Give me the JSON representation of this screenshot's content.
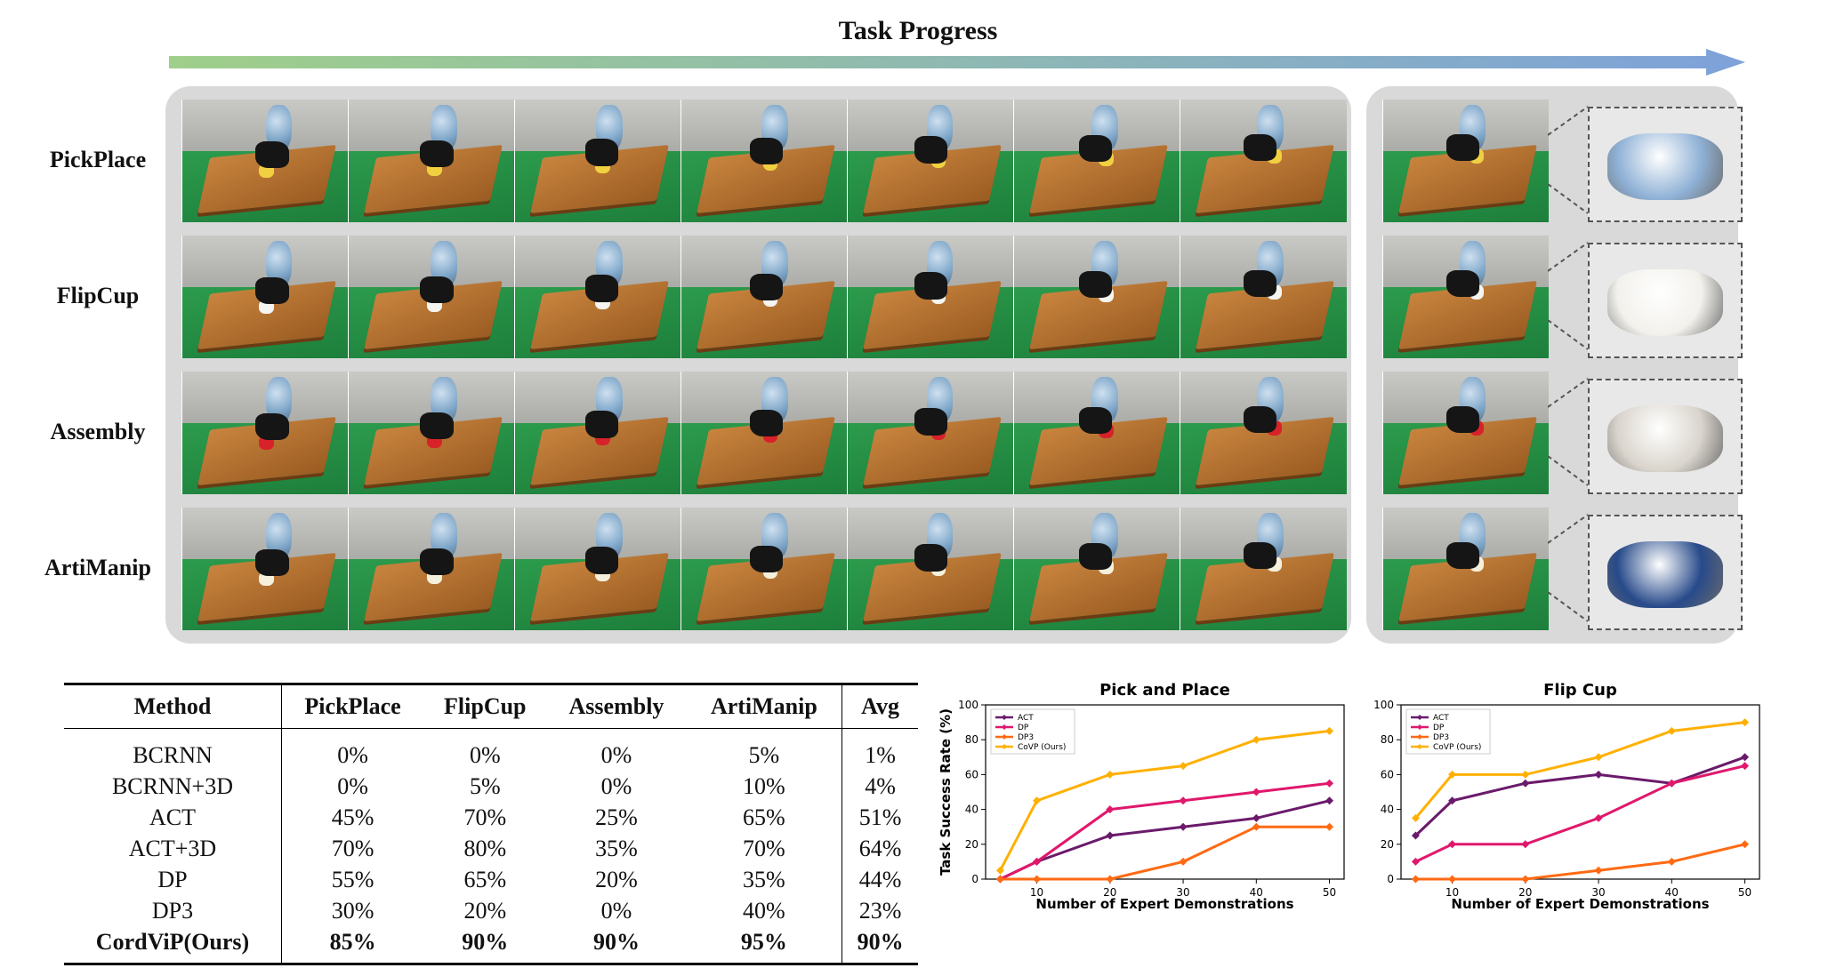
{
  "header": {
    "title": "Task Progress"
  },
  "rows": [
    {
      "label": "PickPlace",
      "object_color": "#f0d040",
      "zoom_color": "#8fb1d6"
    },
    {
      "label": "FlipCup",
      "object_color": "#f4f4f0",
      "zoom_color": "#f2f1ec"
    },
    {
      "label": "Assembly",
      "object_color": "#d8222a",
      "zoom_color": "#d9d4cc"
    },
    {
      "label": "ArtiManip",
      "object_color": "#f5f0dc",
      "zoom_color": "#274a8a"
    }
  ],
  "colors": {
    "panel_bg": "#d9d9d9",
    "arrow_start": "#9fcf8a",
    "arrow_end": "#7fa3d8",
    "act": "#6b1a6b",
    "dp": "#e0186c",
    "dp3": "#ff6a13",
    "covp": "#ffb000"
  },
  "table": {
    "columns": [
      "Method",
      "PickPlace",
      "FlipCup",
      "Assembly",
      "ArtiManip",
      "Avg"
    ],
    "rows": [
      [
        "BCRNN",
        "0%",
        "0%",
        "0%",
        "5%",
        "1%"
      ],
      [
        "BCRNN+3D",
        "0%",
        "5%",
        "0%",
        "10%",
        "4%"
      ],
      [
        "ACT",
        "45%",
        "70%",
        "25%",
        "65%",
        "51%"
      ],
      [
        "ACT+3D",
        "70%",
        "80%",
        "35%",
        "70%",
        "64%"
      ],
      [
        "DP",
        "55%",
        "65%",
        "20%",
        "35%",
        "44%"
      ],
      [
        "DP3",
        "30%",
        "20%",
        "0%",
        "40%",
        "23%"
      ],
      [
        "CordViP(Ours)",
        "85%",
        "90%",
        "90%",
        "95%",
        "90%"
      ]
    ]
  },
  "chart_data": [
    {
      "type": "line",
      "title": "Pick and Place",
      "xlabel": "Number of Expert Demonstrations",
      "ylabel": "Task Success Rate (%)",
      "xlim": [
        3,
        52
      ],
      "ylim": [
        0,
        100
      ],
      "xticks": [
        10,
        20,
        30,
        40,
        50
      ],
      "yticks": [
        0,
        20,
        40,
        60,
        80,
        100
      ],
      "grid": false,
      "legend": "top-left",
      "x": [
        5,
        10,
        20,
        30,
        40,
        50
      ],
      "series": [
        {
          "name": "ACT",
          "color": "#6b1a6b",
          "values": [
            0,
            10,
            25,
            30,
            35,
            45
          ]
        },
        {
          "name": "DP",
          "color": "#e0186c",
          "values": [
            0,
            10,
            40,
            45,
            50,
            55
          ]
        },
        {
          "name": "DP3",
          "color": "#ff6a13",
          "values": [
            0,
            0,
            0,
            10,
            30,
            30
          ]
        },
        {
          "name": "CoVP (Ours)",
          "color": "#ffb000",
          "values": [
            5,
            45,
            60,
            65,
            80,
            85
          ]
        }
      ]
    },
    {
      "type": "line",
      "title": "Flip Cup",
      "xlabel": "Number of Expert Demonstrations",
      "ylabel": "",
      "xlim": [
        3,
        52
      ],
      "ylim": [
        0,
        100
      ],
      "xticks": [
        10,
        20,
        30,
        40,
        50
      ],
      "yticks": [
        0,
        20,
        40,
        60,
        80,
        100
      ],
      "grid": false,
      "legend": "top-left",
      "x": [
        5,
        10,
        20,
        30,
        40,
        50
      ],
      "series": [
        {
          "name": "ACT",
          "color": "#6b1a6b",
          "values": [
            25,
            45,
            55,
            60,
            55,
            70
          ]
        },
        {
          "name": "DP",
          "color": "#e0186c",
          "values": [
            10,
            20,
            20,
            35,
            55,
            65
          ]
        },
        {
          "name": "DP3",
          "color": "#ff6a13",
          "values": [
            0,
            0,
            0,
            5,
            10,
            20
          ]
        },
        {
          "name": "CoVP (Ours)",
          "color": "#ffb000",
          "values": [
            35,
            60,
            60,
            70,
            85,
            90
          ]
        }
      ]
    }
  ]
}
